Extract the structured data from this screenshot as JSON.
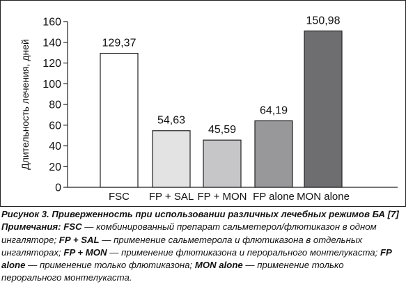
{
  "chart_data": {
    "type": "bar",
    "categories": [
      "FSC",
      "FP + SAL",
      "FP + MON",
      "FP alone",
      "MON alone"
    ],
    "values": [
      129.37,
      54.63,
      45.59,
      64.19,
      150.98
    ],
    "value_labels": [
      "129,37",
      "54,63",
      "45,59",
      "64,19",
      "150,98"
    ],
    "bar_colors": [
      "#ffffff",
      "#e3e3e3",
      "#c6c6c9",
      "#98989b",
      "#6e6e70"
    ],
    "ylabel": "Длительность лечения, дней",
    "xlabel": "",
    "ylim": [
      0,
      160
    ],
    "yticks": [
      0,
      20,
      40,
      60,
      80,
      100,
      120,
      140,
      160
    ],
    "grid": false,
    "legend": "none"
  },
  "caption": {
    "title": "Рисунок 3. Приверженность при использовании различных лечебных режимов БА [7]",
    "notes_label": "Примечания:",
    "notes": [
      {
        "term": "FSC",
        "text": " — комбинированный препарат сальметерол/флютиказон в одном ингаляторе; "
      },
      {
        "term": "FP + SAL",
        "text": " — применение сальметерола и флютиказона в отдельных ингаляторах; "
      },
      {
        "term": "FP + MON",
        "text": " — применение флютиказона и перорального монтелукаста; "
      },
      {
        "term": "FP alone",
        "text": " — применение только флютиказона; "
      },
      {
        "term": "MON alone",
        "text": " — применение только перорального монтелукаста."
      }
    ]
  }
}
